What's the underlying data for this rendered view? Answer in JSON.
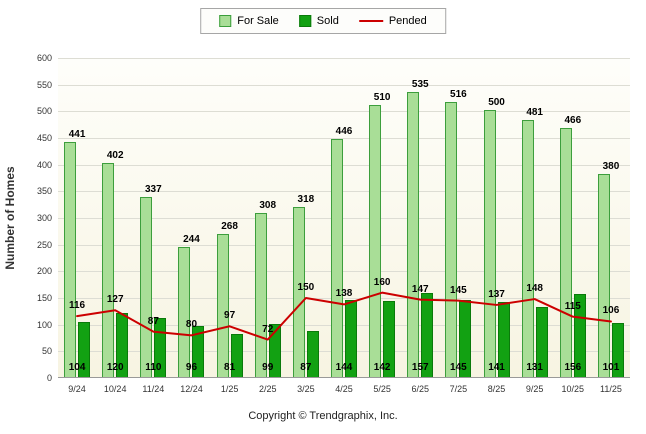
{
  "legend": {
    "for_sale_label": "For Sale",
    "sold_label": "Sold",
    "pended_label": "Pended"
  },
  "footer": {
    "copyright": "Copyright © Trendgraphix, Inc."
  },
  "colors": {
    "for_sale": "#A9DE97",
    "for_sale_border": "#3C9E3C",
    "sold": "#12A112",
    "sold_border": "#0A7A0A",
    "pended": "#CC0000",
    "grid": "#DDDDD4"
  },
  "chart_data": {
    "type": "bar",
    "title": "",
    "ylabel": "Number of Homes",
    "xlabel": "",
    "ylim": [
      0,
      600
    ],
    "yticks": [
      0,
      50,
      100,
      150,
      200,
      250,
      300,
      350,
      400,
      450,
      500,
      550,
      600
    ],
    "grid": true,
    "legend_position": "top",
    "categories": [
      "9/24",
      "10/24",
      "11/24",
      "12/24",
      "1/25",
      "2/25",
      "3/25",
      "4/25",
      "5/25",
      "6/25",
      "7/25",
      "8/25",
      "9/25",
      "10/25",
      "11/25"
    ],
    "series": [
      {
        "name": "For Sale",
        "type": "bar",
        "color": "#A9DE97",
        "values": [
          441,
          402,
          337,
          244,
          268,
          308,
          318,
          446,
          510,
          535,
          516,
          500,
          481,
          466,
          380
        ]
      },
      {
        "name": "Sold",
        "type": "bar",
        "color": "#12A112",
        "values": [
          104,
          120,
          110,
          96,
          81,
          99,
          87,
          144,
          142,
          157,
          145,
          141,
          131,
          156,
          101
        ]
      },
      {
        "name": "Pended",
        "type": "line",
        "color": "#CC0000",
        "values": [
          116,
          127,
          87,
          80,
          97,
          72,
          150,
          138,
          160,
          147,
          145,
          137,
          148,
          115,
          106
        ]
      }
    ]
  }
}
